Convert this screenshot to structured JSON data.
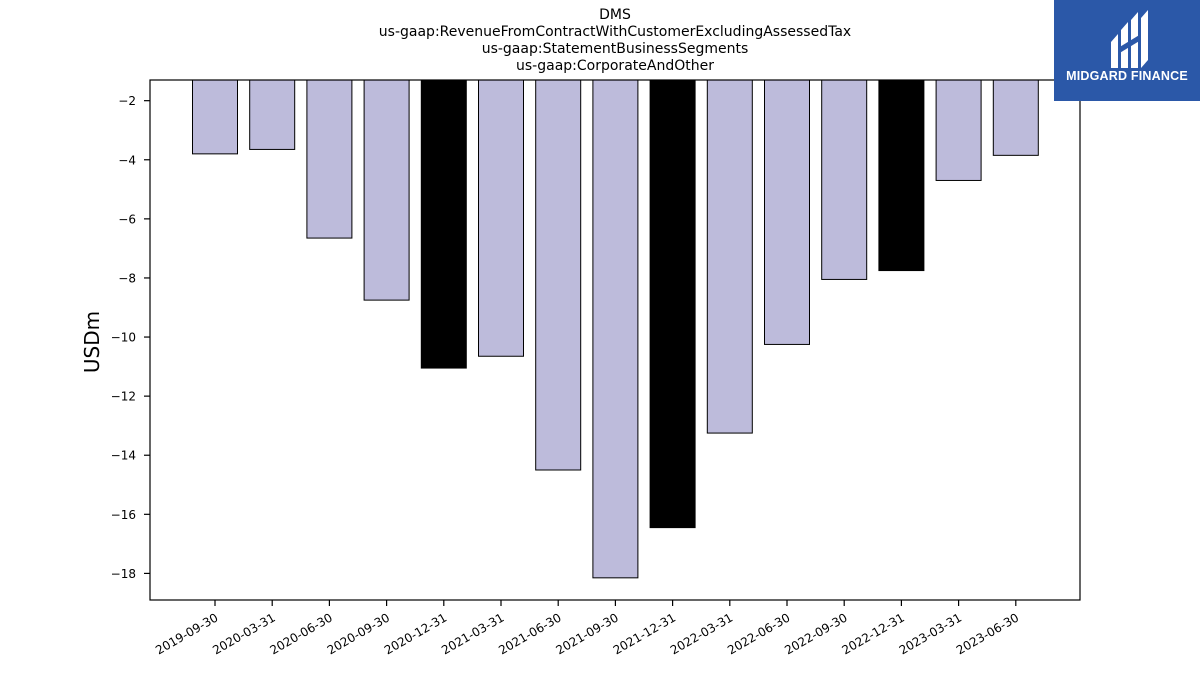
{
  "chart_data": {
    "type": "bar",
    "title_lines": [
      "DMS",
      "us-gaap:RevenueFromContractWithCustomerExcludingAssessedTax",
      "us-gaap:StatementBusinessSegments",
      "us-gaap:CorporateAndOther"
    ],
    "ylabel": "USDm",
    "xlabel": "",
    "categories": [
      "2019-09-30",
      "2020-03-31",
      "2020-06-30",
      "2020-09-30",
      "2020-12-31",
      "2021-03-31",
      "2021-06-30",
      "2021-09-30",
      "2021-12-31",
      "2022-03-31",
      "2022-06-30",
      "2022-09-30",
      "2022-12-31",
      "2023-03-31",
      "2023-06-30"
    ],
    "values": [
      -3.8,
      -3.65,
      -6.65,
      -8.75,
      -11.05,
      -10.65,
      -14.5,
      -18.15,
      -16.45,
      -13.25,
      -10.25,
      -8.05,
      -7.75,
      -4.7,
      -3.85
    ],
    "highlight": [
      false,
      false,
      false,
      false,
      true,
      false,
      false,
      false,
      true,
      false,
      false,
      false,
      true,
      false,
      false
    ],
    "ylim": [
      -18.9,
      -1.3
    ],
    "yticks": [
      -2,
      -4,
      -6,
      -8,
      -10,
      -12,
      -14,
      -16,
      -18
    ],
    "grid": false,
    "colors": {
      "bar": "#bdbbdb",
      "highlight_bar": "#000000",
      "edge": "#000000"
    }
  },
  "logo": {
    "text": "MIDGARD FINANCE",
    "background": "#2b58a8"
  }
}
